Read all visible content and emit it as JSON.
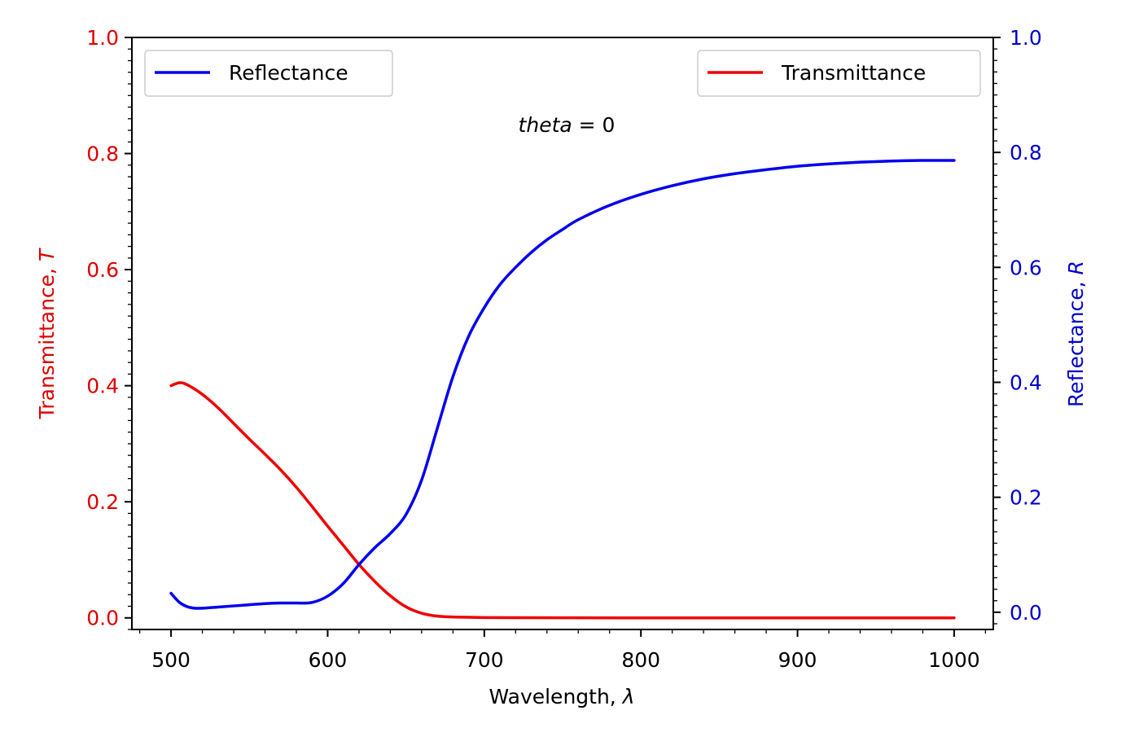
{
  "chart_data": {
    "type": "line",
    "xlabel": "Wavelength, ",
    "xlabel_symbol": "λ",
    "ylabel_left": "Transmittance, ",
    "ylabel_left_symbol": "T",
    "ylabel_right": "Reflectance, ",
    "ylabel_right_symbol": "R",
    "annotation_var": "theta",
    "annotation_rest": " = 0",
    "xlim": [
      475,
      1025
    ],
    "ylim_left": [
      -0.02,
      1.0
    ],
    "ylim_right": [
      -0.03,
      1.0
    ],
    "x_ticks": [
      500,
      600,
      700,
      800,
      900,
      1000
    ],
    "x_tick_labels": [
      "500",
      "600",
      "700",
      "800",
      "900",
      "1000"
    ],
    "y_left_ticks": [
      0.0,
      0.2,
      0.4,
      0.6,
      0.8,
      1.0
    ],
    "y_left_tick_labels": [
      "0.0",
      "0.2",
      "0.4",
      "0.6",
      "0.8",
      "1.0"
    ],
    "y_right_ticks": [
      0.0,
      0.2,
      0.4,
      0.6,
      0.8,
      1.0
    ],
    "y_right_tick_labels": [
      "0.0",
      "0.2",
      "0.4",
      "0.6",
      "0.8",
      "1.0"
    ],
    "grid": false,
    "colors": {
      "left_axis": "#dd0000",
      "right_axis": "#0000cc",
      "transmittance": "#ee0000",
      "reflectance": "#0000ee"
    },
    "series": [
      {
        "name": "Reflectance",
        "axis": "right",
        "color": "#0000ee",
        "legend_position": "top-left",
        "x": [
          500,
          505,
          510,
          515,
          520,
          530,
          540,
          550,
          560,
          570,
          580,
          590,
          600,
          610,
          620,
          630,
          640,
          650,
          660,
          670,
          680,
          690,
          700,
          710,
          720,
          730,
          740,
          750,
          760,
          780,
          800,
          820,
          840,
          860,
          880,
          900,
          920,
          940,
          960,
          980,
          1000
        ],
        "y": [
          0.033,
          0.018,
          0.01,
          0.007,
          0.007,
          0.009,
          0.011,
          0.013,
          0.015,
          0.016,
          0.016,
          0.017,
          0.028,
          0.05,
          0.083,
          0.112,
          0.137,
          0.17,
          0.23,
          0.32,
          0.41,
          0.48,
          0.53,
          0.57,
          0.6,
          0.626,
          0.648,
          0.666,
          0.683,
          0.708,
          0.727,
          0.742,
          0.754,
          0.763,
          0.77,
          0.776,
          0.78,
          0.783,
          0.785,
          0.786,
          0.786
        ]
      },
      {
        "name": "Transmittance",
        "axis": "left",
        "color": "#ee0000",
        "legend_position": "top-right",
        "x": [
          500,
          505,
          510,
          520,
          530,
          540,
          550,
          560,
          570,
          580,
          590,
          600,
          610,
          620,
          630,
          640,
          650,
          660,
          670,
          680,
          690,
          700,
          720,
          750,
          800,
          900,
          1000
        ],
        "y": [
          0.4,
          0.405,
          0.402,
          0.385,
          0.362,
          0.335,
          0.308,
          0.282,
          0.255,
          0.225,
          0.192,
          0.158,
          0.125,
          0.092,
          0.063,
          0.038,
          0.019,
          0.008,
          0.003,
          0.0015,
          0.001,
          0.0005,
          0.0003,
          0.0002,
          0.0,
          0.0,
          0.0
        ]
      }
    ]
  }
}
